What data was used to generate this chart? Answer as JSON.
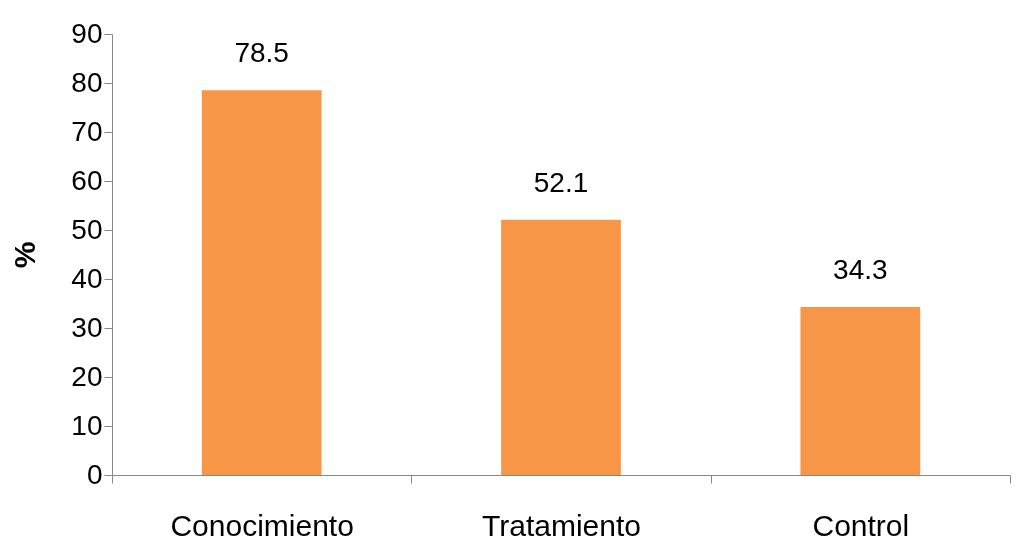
{
  "chart_data": {
    "type": "bar",
    "ylabel": "%",
    "categories": [
      "Conocimiento",
      "Tratamiento",
      "Control"
    ],
    "values": [
      78.5,
      52.1,
      34.3
    ],
    "color": "#f79646",
    "ylim": [
      0,
      90
    ],
    "yticks": [
      0,
      10,
      20,
      30,
      40,
      50,
      60,
      70,
      80,
      90
    ],
    "grid": false,
    "data_labels": true
  }
}
